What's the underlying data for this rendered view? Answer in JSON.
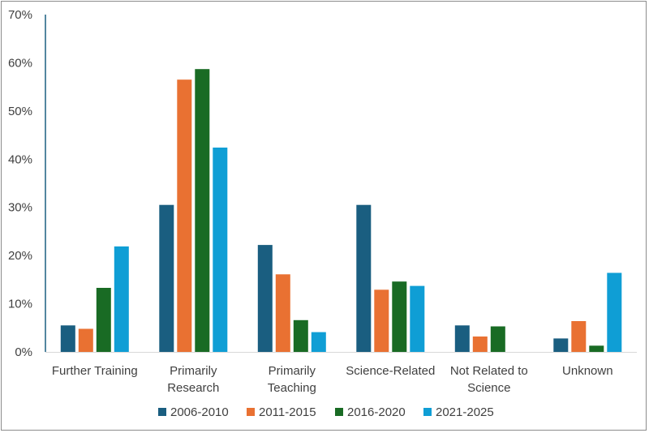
{
  "chart_data": {
    "type": "bar",
    "categories": [
      [
        "Further Training"
      ],
      [
        "Primarily",
        "Research"
      ],
      [
        "Primarily",
        "Teaching"
      ],
      [
        "Science-Related"
      ],
      [
        "Not Related to",
        "Science"
      ],
      [
        "Unknown"
      ]
    ],
    "series": [
      {
        "name": "2006-2010",
        "color": "#1a5e80",
        "values": [
          5.5,
          30.5,
          22.2,
          30.5,
          5.5,
          2.8
        ]
      },
      {
        "name": "2011-2015",
        "color": "#e97132",
        "values": [
          4.8,
          56.5,
          16.1,
          12.9,
          3.2,
          6.4
        ]
      },
      {
        "name": "2016-2020",
        "color": "#196b24",
        "values": [
          13.3,
          58.7,
          6.6,
          14.6,
          5.3,
          1.3
        ]
      },
      {
        "name": "2021-2025",
        "color": "#0f9ed5",
        "values": [
          21.9,
          42.4,
          4.1,
          13.7,
          null,
          16.4
        ]
      }
    ],
    "yticks": [
      "0%",
      "10%",
      "20%",
      "30%",
      "40%",
      "50%",
      "60%",
      "70%"
    ],
    "ylim": [
      0,
      70
    ],
    "title": "",
    "xlabel": "",
    "ylabel": "",
    "legend_position": "bottom",
    "grid": false
  }
}
